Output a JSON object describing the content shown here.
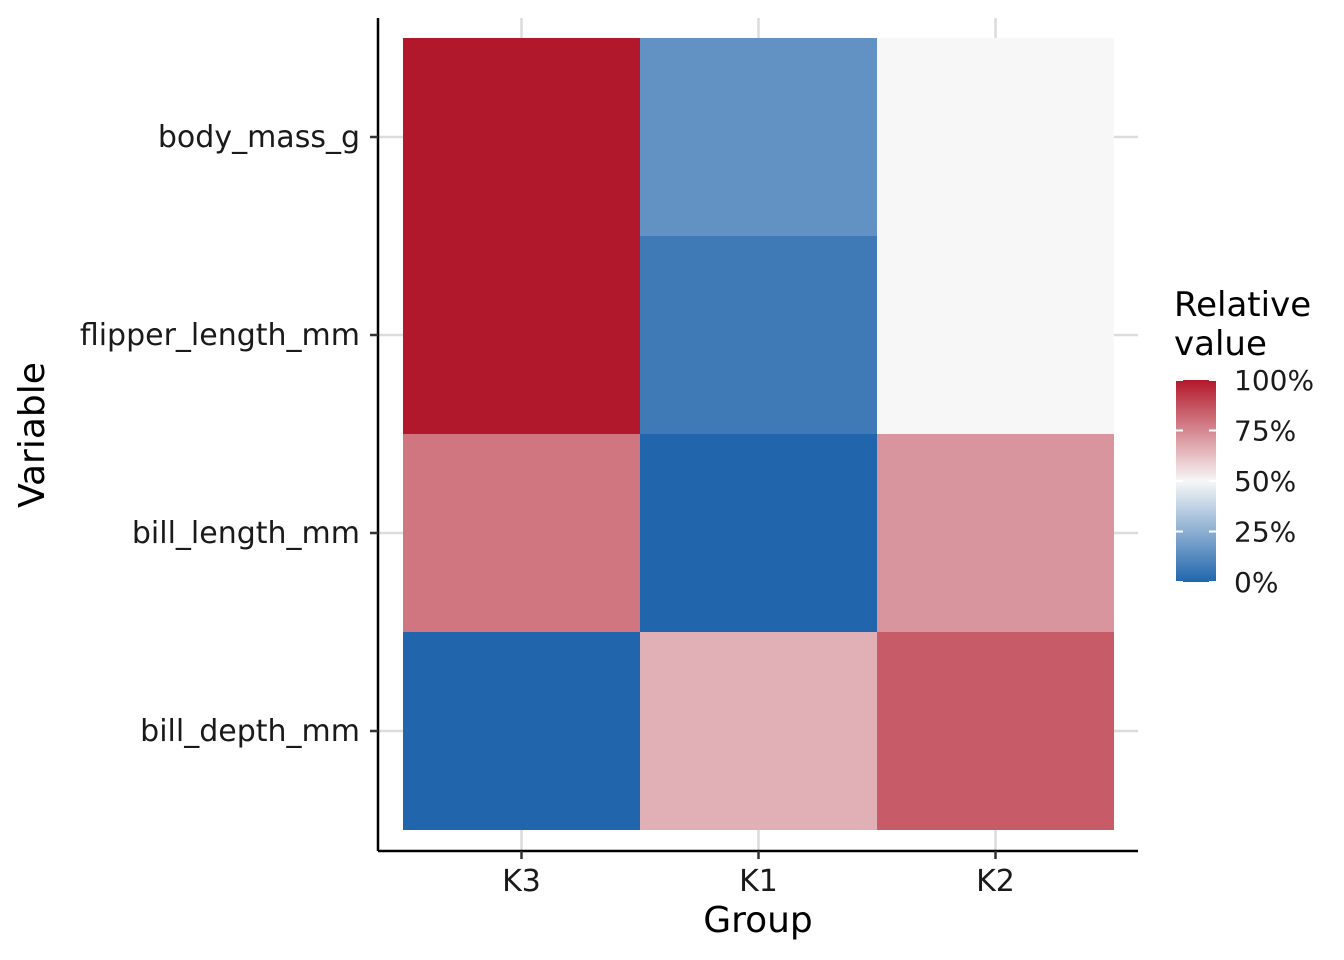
{
  "chart_data": {
    "type": "heatmap",
    "title": "",
    "xlabel": "Group",
    "ylabel": "Variable",
    "x_categories": [
      "K3",
      "K1",
      "K2"
    ],
    "y_categories": [
      "body_mass_g",
      "flipper_length_mm",
      "bill_length_mm",
      "bill_depth_mm"
    ],
    "values": [
      [
        1.0,
        0.15,
        0.5
      ],
      [
        1.0,
        0.07,
        0.5
      ],
      [
        0.79,
        0.0,
        0.72
      ],
      [
        0.0,
        0.66,
        0.85
      ]
    ],
    "value_range": [
      0,
      1
    ],
    "color_scale": {
      "low": "#2166ac",
      "mid": "#f7f7f7",
      "high": "#b2182b",
      "midpoint": 0.5
    },
    "legend": {
      "title_lines": [
        "Relative",
        "value"
      ],
      "labels": [
        "100%",
        "75%",
        "50%",
        "25%",
        "0%"
      ],
      "positions": [
        1.0,
        0.75,
        0.5,
        0.25,
        0.0
      ],
      "placement": "right"
    },
    "grid": true
  }
}
